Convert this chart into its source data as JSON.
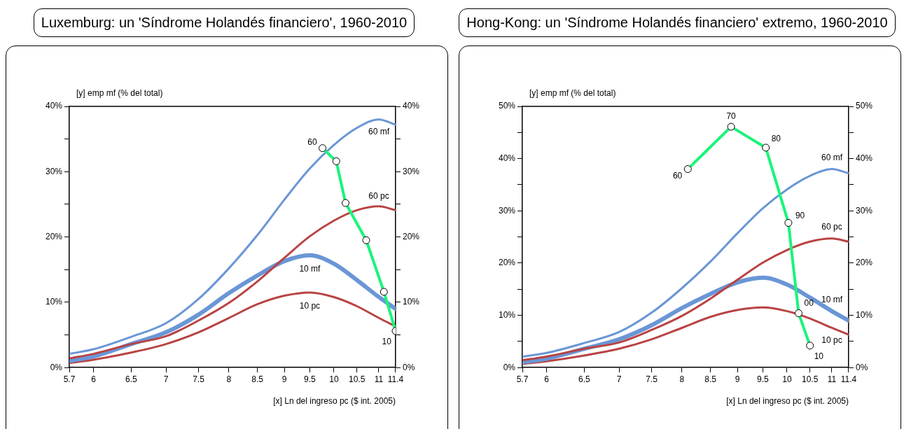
{
  "chart_data": [
    {
      "type": "line",
      "title": "Luxemburg: un 'Síndrome Holandés financiero', 1960-2010",
      "xlabel": "[x] Ln del ingreso pc ($ int. 2005)",
      "ylabel": "[y] emp mf (% del total)",
      "log": "x",
      "grid": false,
      "legend": false,
      "x": [
        5.7,
        6,
        6.5,
        7,
        7.5,
        8,
        8.5,
        9,
        9.5,
        10,
        10.5,
        11,
        11.4
      ],
      "xlim": [
        5.7,
        11.4
      ],
      "xticks": [
        5.7,
        6,
        6.5,
        7,
        7.5,
        8,
        8.5,
        9,
        9.5,
        10,
        10.5,
        11,
        11.4
      ],
      "ylim": [
        0,
        40
      ],
      "yticks": [
        {
          "value": 0,
          "label": "0%"
        },
        {
          "value": 5,
          "label": null
        },
        {
          "value": 10,
          "label": "10%"
        },
        {
          "value": 15,
          "label": null
        },
        {
          "value": 20,
          "label": "20%"
        },
        {
          "value": 25,
          "label": null
        },
        {
          "value": 30,
          "label": "30%"
        },
        {
          "value": 35,
          "label": null
        },
        {
          "value": 40,
          "label": "40%"
        }
      ],
      "y2lim": [
        0,
        40
      ],
      "y2ticks": [
        {
          "value": 0,
          "label": "0%"
        },
        {
          "value": 5,
          "label": null
        },
        {
          "value": 10,
          "label": "10%"
        },
        {
          "value": 15,
          "label": null
        },
        {
          "value": 20,
          "label": "20%"
        },
        {
          "value": 25,
          "label": null
        },
        {
          "value": 30,
          "label": "30%"
        },
        {
          "value": 35,
          "label": null
        },
        {
          "value": 40,
          "label": "40%"
        }
      ],
      "series": [
        {
          "name": "60 mf",
          "color": "#6a96d6",
          "marker": "none",
          "values": [
            2.1,
            2.8,
            4.7,
            6.8,
            10.5,
            15.2,
            20.3,
            25.7,
            30.5,
            34.1,
            36.7,
            38.0,
            37.2
          ]
        },
        {
          "name": "60 pc",
          "color": "#b94343",
          "marker": "none",
          "values": [
            1.4,
            2.1,
            3.6,
            4.8,
            7.2,
            9.9,
            13.2,
            16.8,
            20.1,
            22.5,
            24.1,
            24.7,
            24.1
          ]
        },
        {
          "name": "10 mf",
          "color": "#6a96d6",
          "marker": "none",
          "values": [
            1.0,
            1.7,
            3.6,
            5.4,
            8.1,
            11.4,
            14.1,
            16.3,
            17.2,
            15.9,
            13.4,
            10.8,
            9.0
          ]
        },
        {
          "name": "10 pc",
          "color": "#b94343",
          "marker": "none",
          "values": [
            0.7,
            1.2,
            2.3,
            3.6,
            5.4,
            7.6,
            9.7,
            11.0,
            11.5,
            10.8,
            9.4,
            7.6,
            6.3
          ]
        },
        {
          "color": "#19f57a",
          "marker": "circle",
          "x": [
            9.76,
            10.05,
            10.25,
            10.71,
            11.12,
            11.4
          ],
          "values": [
            33.6,
            31.6,
            25.2,
            19.5,
            11.6,
            5.6
          ]
        }
      ],
      "annotations": [
        {
          "text": "60",
          "x": 9.76,
          "y": 33.6
        },
        {
          "text": "10",
          "x": 11.4,
          "y": 5.6
        }
      ]
    },
    {
      "type": "line",
      "title": "Hong-Kong: un 'Síndrome Holandés financiero' extremo, 1960-2010",
      "xlabel": "[x] Ln del ingreso pc ($ int. 2005)",
      "ylabel": "[y] emp mf (% del total)",
      "log": "x",
      "grid": false,
      "legend": false,
      "x": [
        5.7,
        6,
        6.5,
        7,
        7.5,
        8,
        8.5,
        9,
        9.5,
        10,
        10.5,
        11,
        11.4
      ],
      "xlim": [
        5.7,
        11.4
      ],
      "xticks": [
        5.7,
        6,
        6.5,
        7,
        7.5,
        8,
        8.5,
        9,
        9.5,
        10,
        10.5,
        11,
        11.4
      ],
      "ylim": [
        0,
        50
      ],
      "yticks": [
        {
          "value": 0,
          "label": "0%"
        },
        {
          "value": 5,
          "label": null
        },
        {
          "value": 10,
          "label": "10%"
        },
        {
          "value": 15,
          "label": null
        },
        {
          "value": 20,
          "label": "20%"
        },
        {
          "value": 25,
          "label": null
        },
        {
          "value": 30,
          "label": "30%"
        },
        {
          "value": 35,
          "label": null
        },
        {
          "value": 40,
          "label": "40%"
        },
        {
          "value": 45,
          "label": null
        },
        {
          "value": 50,
          "label": "50%"
        }
      ],
      "y2lim": [
        0,
        50
      ],
      "y2ticks": [
        {
          "value": 0,
          "label": "0%"
        },
        {
          "value": 5,
          "label": null
        },
        {
          "value": 10,
          "label": "10%"
        },
        {
          "value": 15,
          "label": null
        },
        {
          "value": 20,
          "label": "20%"
        },
        {
          "value": 25,
          "label": null
        },
        {
          "value": 30,
          "label": "30%"
        },
        {
          "value": 35,
          "label": null
        },
        {
          "value": 40,
          "label": "40%"
        },
        {
          "value": 45,
          "label": null
        },
        {
          "value": 50,
          "label": "50%"
        }
      ],
      "series": [
        {
          "name": "60 mf",
          "color": "#6a96d6",
          "marker": "none",
          "values": [
            2.1,
            2.8,
            4.7,
            6.8,
            10.5,
            15.2,
            20.3,
            25.7,
            30.5,
            34.1,
            36.7,
            38.0,
            37.2
          ]
        },
        {
          "name": "60 pc",
          "color": "#b94343",
          "marker": "none",
          "values": [
            1.4,
            2.1,
            3.6,
            4.8,
            7.2,
            9.9,
            13.2,
            16.8,
            20.1,
            22.5,
            24.1,
            24.7,
            24.1
          ]
        },
        {
          "name": "10 mf",
          "color": "#6a96d6",
          "marker": "none",
          "values": [
            1.0,
            1.7,
            3.6,
            5.4,
            8.1,
            11.4,
            14.1,
            16.3,
            17.2,
            15.9,
            13.4,
            10.8,
            9.0
          ]
        },
        {
          "name": "10 pc",
          "color": "#b94343",
          "marker": "none",
          "values": [
            0.7,
            1.2,
            2.3,
            3.6,
            5.4,
            7.6,
            9.7,
            11.0,
            11.5,
            10.8,
            9.4,
            7.6,
            6.3
          ]
        },
        {
          "color": "#19f57a",
          "marker": "circle",
          "x": [
            8.1,
            8.88,
            9.56,
            10.03,
            10.25,
            10.5
          ],
          "values": [
            38.0,
            46.1,
            42.1,
            27.7,
            10.4,
            4.2
          ]
        }
      ],
      "annotations": [
        {
          "text": "60",
          "x": 8.1,
          "y": 38.0
        },
        {
          "text": "70",
          "x": 8.88,
          "y": 46.1
        },
        {
          "text": "80",
          "x": 9.56,
          "y": 42.1
        },
        {
          "text": "90",
          "x": 10.03,
          "y": 27.7
        },
        {
          "text": "00",
          "x": 10.25,
          "y": 10.4
        },
        {
          "text": "10",
          "x": 10.5,
          "y": 4.2
        }
      ]
    }
  ]
}
